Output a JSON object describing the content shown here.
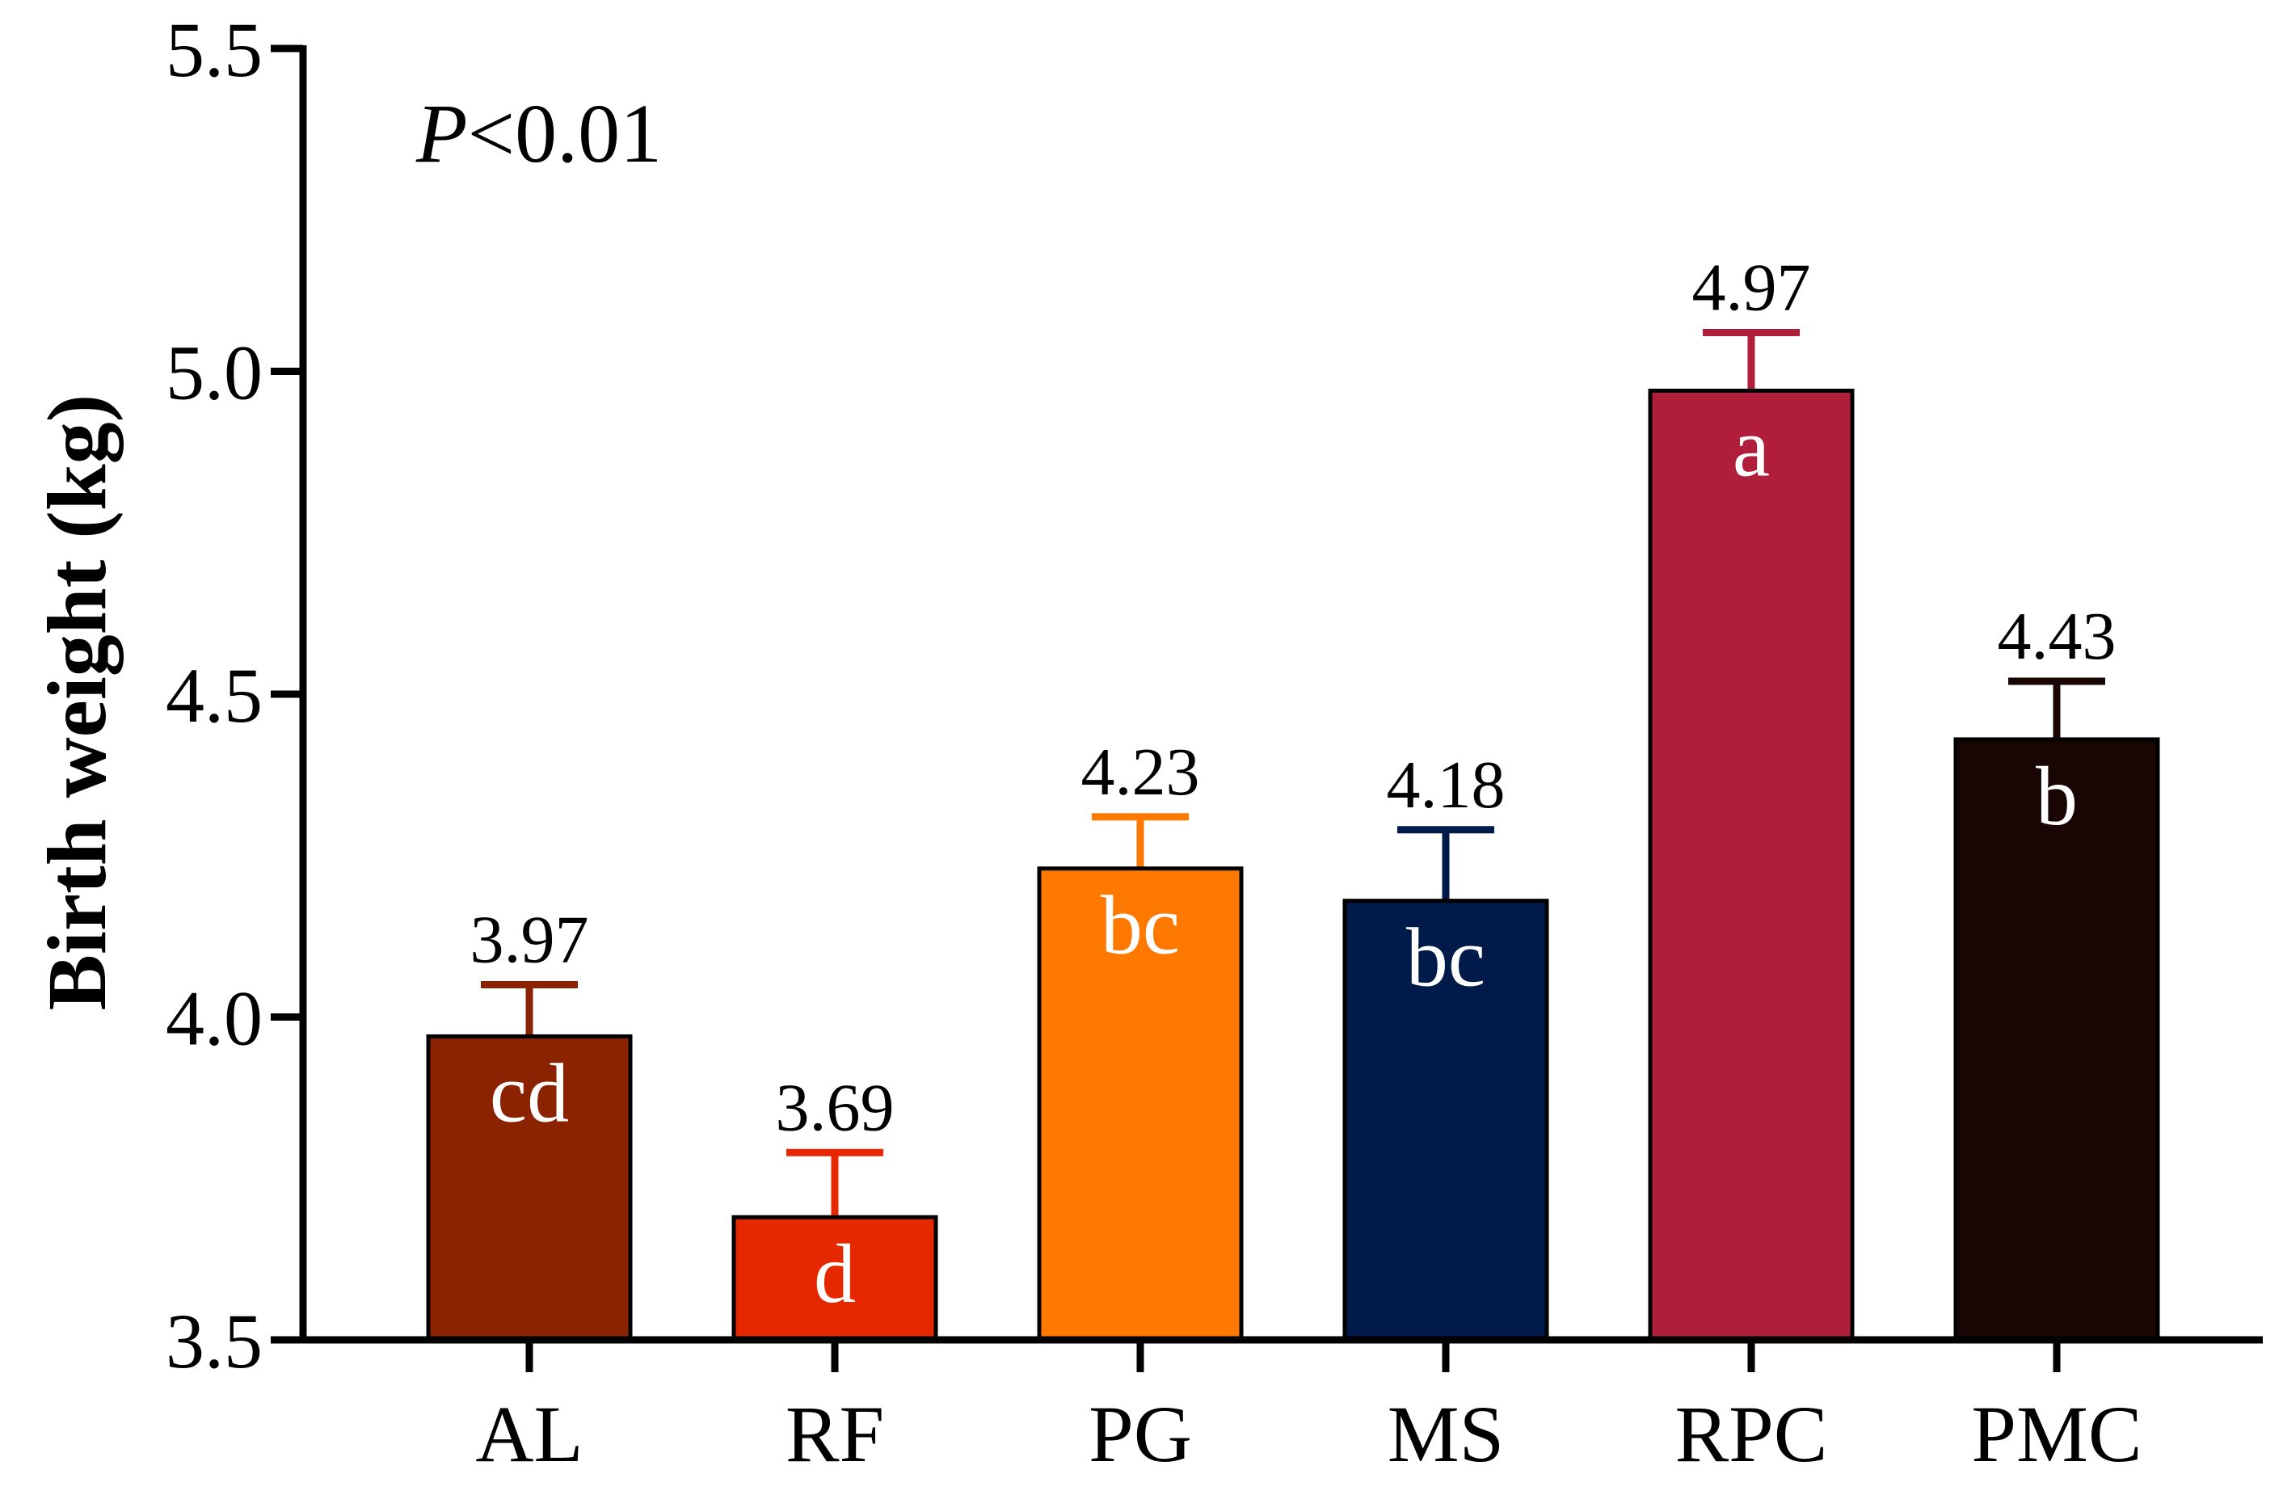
{
  "chart_data": {
    "type": "bar",
    "categories": [
      "AL",
      "RF",
      "PG",
      "MS",
      "RPC",
      "PMC"
    ],
    "values": [
      3.97,
      3.69,
      4.23,
      4.18,
      4.97,
      4.43
    ],
    "errors": [
      0.08,
      0.1,
      0.08,
      0.11,
      0.09,
      0.09
    ],
    "value_labels": [
      "3.97",
      "3.69",
      "4.23",
      "4.18",
      "4.97",
      "4.43"
    ],
    "significance_letters": [
      "cd",
      "d",
      "bc",
      "bc",
      "a",
      "b"
    ],
    "colors": [
      "#8b2300",
      "#e62800",
      "#ff7800",
      "#001a4a",
      "#b01e3c",
      "#1a0505"
    ],
    "ylabel": "Birth weight (kg)",
    "xlabel": "",
    "ylim": [
      3.5,
      5.5
    ],
    "yticks": [
      3.5,
      4.0,
      4.5,
      5.0,
      5.5
    ],
    "ytick_labels": [
      "3.5",
      "4.0",
      "4.5",
      "5.0",
      "5.5"
    ],
    "grid": false,
    "annotation": {
      "italic": "P",
      "rest": "<0.01"
    }
  }
}
